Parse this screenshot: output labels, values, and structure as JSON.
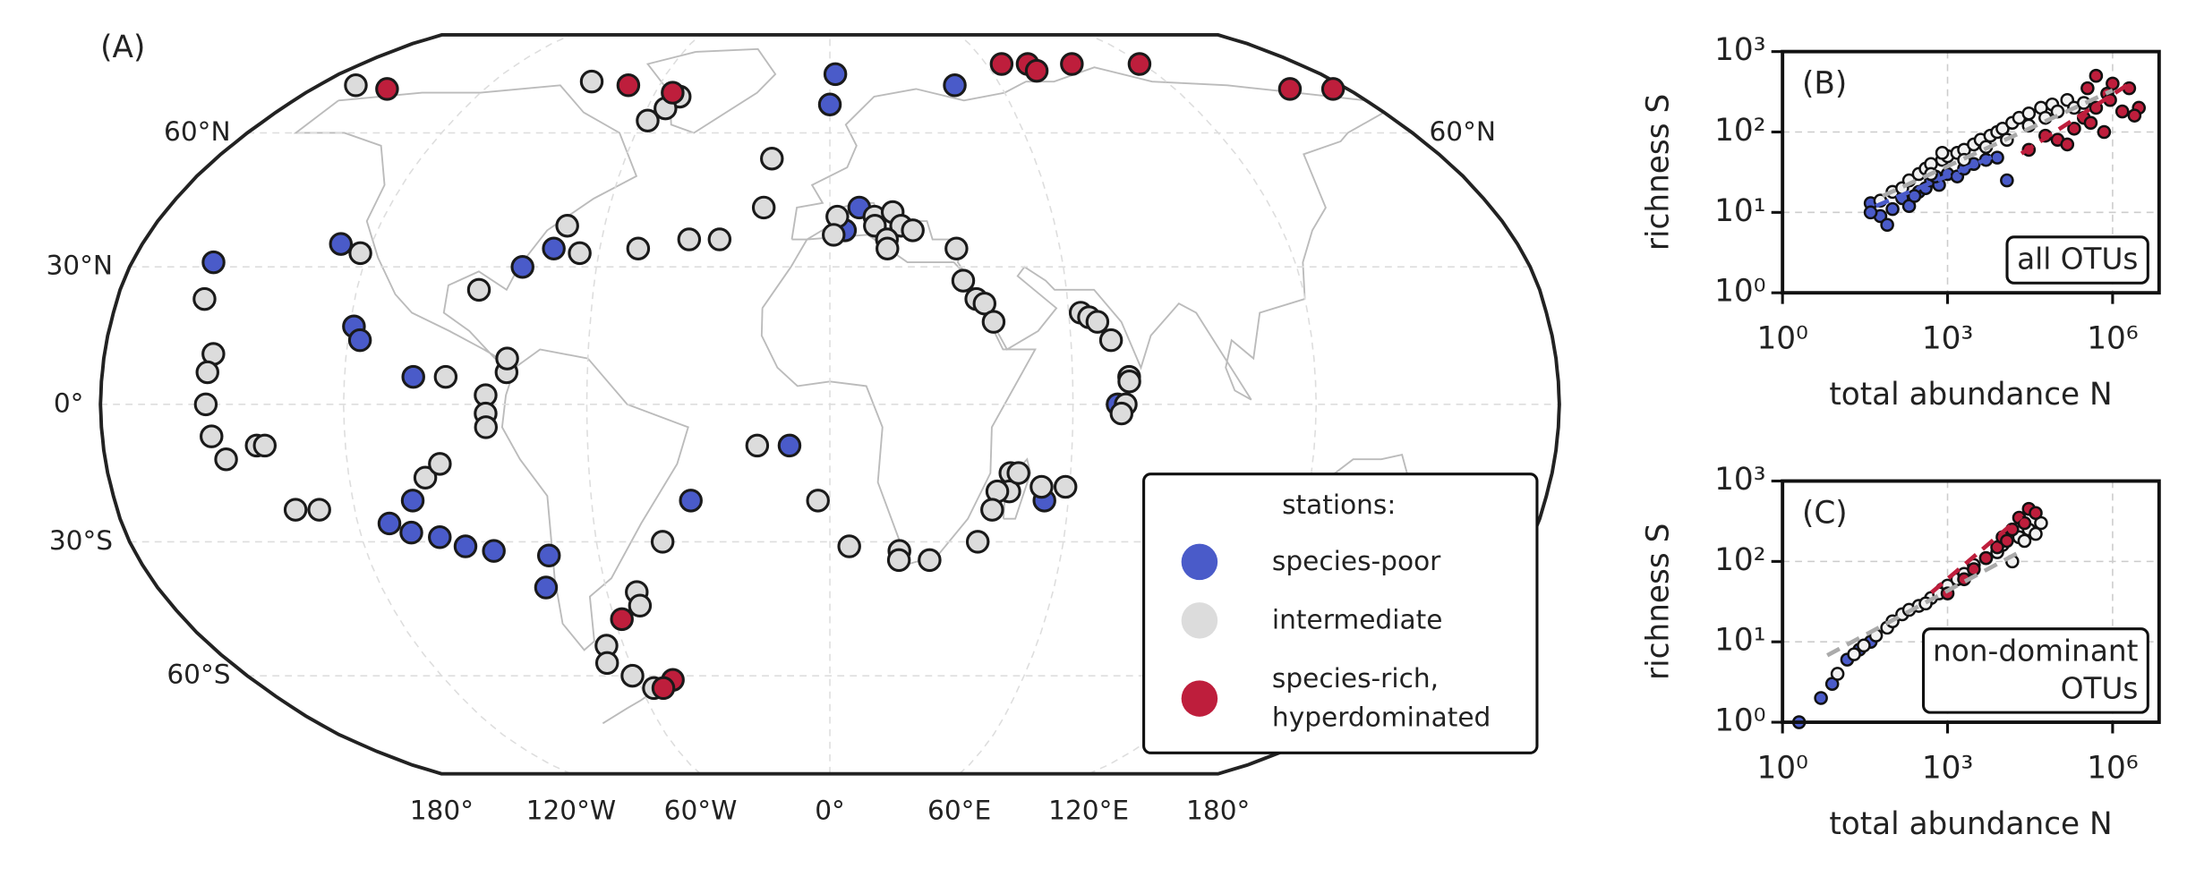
{
  "chart_data": [
    {
      "type": "map",
      "label": "(A)",
      "projection": "robinson",
      "grid": true,
      "xticks": [
        {
          "value": -180,
          "label": "180°"
        },
        {
          "value": -120,
          "label": "120°W"
        },
        {
          "value": -60,
          "label": "60°W"
        },
        {
          "value": 0,
          "label": "0°"
        },
        {
          "value": 60,
          "label": "60°E"
        },
        {
          "value": 120,
          "label": "120°E"
        },
        {
          "value": 180,
          "label": "180°"
        }
      ],
      "yticks": [
        {
          "value": 60,
          "label": "60°N"
        },
        {
          "value": 30,
          "label": "30°N"
        },
        {
          "value": 0,
          "label": "0°"
        },
        {
          "value": -30,
          "label": "30°S"
        },
        {
          "value": -60,
          "label": "60°S"
        }
      ],
      "yticks_right": [
        {
          "value": 60,
          "label": "60°N"
        }
      ],
      "legend": {
        "title": "stations:",
        "position": "lower right"
      },
      "series": [
        {
          "name": "species-poor",
          "color": "#4a5bc9",
          "lon": [
            -159,
            -128,
            -119,
            -117,
            -103,
            -79,
            -72,
            2,
            0,
            44,
            8,
            4,
            -35,
            -105,
            -112,
            -107,
            -100,
            -94,
            -87,
            -73,
            -76,
            -10,
            54,
            71
          ],
          "lat": [
            31,
            35,
            17,
            14,
            6,
            30,
            34,
            75,
            67,
            72,
            43,
            38,
            -21,
            -21,
            -26,
            -28,
            -29,
            -31,
            -32,
            -33,
            -40,
            -9,
            -21,
            0
          ]
        },
        {
          "name": "intermediate",
          "color": "#dcdcdc",
          "lon": [
            -167,
            -85,
            -51,
            -54,
            -58,
            -17,
            -18,
            -50,
            -37,
            -29,
            -70,
            -65,
            -89,
            -122,
            -158,
            -153,
            -154,
            -154,
            -153,
            -150,
            -142,
            -140,
            -135,
            -129,
            -101,
            -97,
            -95,
            -80,
            -80,
            -85,
            -85,
            -85,
            -18,
            -3,
            -43,
            -52,
            -52,
            -65,
            -67,
            -61,
            -56,
            5,
            18,
            18,
            26,
            2,
            1,
            12,
            17,
            19,
            22,
            12,
            15,
            15,
            33,
            34,
            37,
            39,
            41,
            63,
            65,
            67,
            70,
            74,
            74,
            73,
            72,
            45,
            45,
            42,
            47,
            53,
            59,
            41,
            38
          ],
          "lat": [
            72,
            73,
            69,
            66,
            63,
            54,
            43,
            34,
            36,
            36,
            39,
            33,
            25,
            33,
            23,
            11,
            7,
            0,
            -7,
            -12,
            -9,
            -9,
            -23,
            -23,
            -16,
            -13,
            6,
            7,
            10,
            2,
            -2,
            -5,
            -9,
            -21,
            -30,
            -41,
            -44,
            -53,
            -57,
            -60,
            -63,
            -31,
            -32,
            -34,
            -34,
            41,
            37,
            41,
            42,
            39,
            38,
            39,
            36,
            34,
            34,
            27,
            23,
            22,
            18,
            20,
            19,
            18,
            14,
            6,
            5,
            0,
            -2,
            -15,
            -19,
            -19,
            -15,
            -18,
            -18,
            -23,
            -30
          ]
        },
        {
          "name": "species-rich,\nhyperdominated",
          "color": "#be1e3c",
          "lon": [
            -154,
            -71,
            -54,
            66,
            76,
            77,
            93,
            119,
            160,
            175,
            -58,
            -49,
            -53
          ],
          "lat": [
            71,
            72,
            70,
            78,
            78,
            76,
            78,
            78,
            71,
            71,
            -47,
            -61,
            -63
          ]
        }
      ]
    },
    {
      "type": "scatter",
      "label": "(B)",
      "annotation": "all OTUs",
      "xlabel": "total abundance N",
      "ylabel": "richness S",
      "xscale": "log",
      "yscale": "log",
      "grid": true,
      "xlim": [
        1,
        7000000
      ],
      "ylim": [
        1,
        1000
      ],
      "xticks": [
        {
          "value": 1,
          "label": "10⁰"
        },
        {
          "value": 1000,
          "label": "10³"
        },
        {
          "value": 1000000,
          "label": "10⁶"
        }
      ],
      "yticks": [
        {
          "value": 1,
          "label": "10⁰"
        },
        {
          "value": 10,
          "label": "10¹"
        },
        {
          "value": 100,
          "label": "10²"
        },
        {
          "value": 1000,
          "label": "10³"
        }
      ],
      "series": [
        {
          "color": "#4a5bc9",
          "x": [
            40,
            60,
            80,
            100,
            150,
            200,
            300,
            400,
            500,
            700,
            1000,
            1500,
            2000,
            3000,
            5000,
            8000,
            12000,
            40,
            250,
            600
          ],
          "y": [
            13,
            9,
            7,
            11,
            15,
            12,
            18,
            20,
            25,
            22,
            30,
            28,
            35,
            40,
            45,
            48,
            25,
            10,
            16,
            28
          ]
        },
        {
          "color": "#f2f2f2",
          "x": [
            60,
            100,
            150,
            200,
            300,
            400,
            500,
            800,
            1000,
            1500,
            2000,
            3000,
            4000,
            6000,
            8000,
            10000,
            15000,
            20000,
            30000,
            50000,
            80000,
            100000,
            150000,
            200000,
            300000,
            500,
            2000,
            5000,
            800,
            30000,
            12000,
            60000
          ],
          "y": [
            14,
            18,
            20,
            25,
            30,
            35,
            40,
            45,
            50,
            55,
            60,
            70,
            80,
            90,
            100,
            110,
            130,
            150,
            170,
            200,
            220,
            180,
            250,
            200,
            230,
            30,
            45,
            65,
            55,
            120,
            80,
            150
          ]
        },
        {
          "color": "#be1e3c",
          "x": [
            30000,
            60000,
            100000,
            200000,
            300000,
            500000,
            800000,
            1000000,
            500000,
            2000000,
            3000000,
            400000,
            700000,
            1500000,
            150000,
            900000,
            2500000,
            350000
          ],
          "y": [
            60,
            90,
            80,
            110,
            150,
            200,
            300,
            400,
            500,
            350,
            200,
            130,
            100,
            180,
            70,
            250,
            160,
            350
          ]
        }
      ],
      "fits": [
        {
          "color": "#4a5bc9",
          "x": [
            50,
            7000
          ],
          "y": [
            12,
            50
          ]
        },
        {
          "color": "#aaaaaa",
          "x": [
            66,
            1000000
          ],
          "y": [
            16,
            330
          ]
        },
        {
          "color": "#be1e3c",
          "x": [
            22000,
            2400000
          ],
          "y": [
            54,
            430
          ]
        }
      ]
    },
    {
      "type": "scatter",
      "label": "(C)",
      "annotation": "non-dominant\nOTUs",
      "xlabel": "total abundance N",
      "ylabel": "richness S",
      "xscale": "log",
      "yscale": "log",
      "grid": true,
      "xlim": [
        1,
        7000000
      ],
      "ylim": [
        1,
        1000
      ],
      "xticks": [
        {
          "value": 1,
          "label": "10⁰"
        },
        {
          "value": 1000,
          "label": "10³"
        },
        {
          "value": 1000000,
          "label": "10⁶"
        }
      ],
      "yticks": [
        {
          "value": 1,
          "label": "10⁰"
        },
        {
          "value": 10,
          "label": "10¹"
        },
        {
          "value": 100,
          "label": "10²"
        },
        {
          "value": 1000,
          "label": "10³"
        }
      ],
      "series": [
        {
          "color": "#4a5bc9",
          "x": [
            2,
            5,
            8,
            15,
            25,
            40
          ],
          "y": [
            1,
            2,
            3,
            6,
            8,
            10
          ]
        },
        {
          "color": "#f2f2f2",
          "x": [
            10,
            20,
            30,
            50,
            80,
            100,
            150,
            200,
            300,
            500,
            800,
            1000,
            1500,
            2000,
            3000,
            5000,
            8000,
            10000,
            20000,
            30000,
            25000,
            15000,
            40000,
            50000,
            700,
            400
          ],
          "y": [
            4,
            7,
            9,
            12,
            15,
            18,
            22,
            25,
            28,
            35,
            45,
            50,
            60,
            70,
            90,
            110,
            130,
            160,
            200,
            250,
            180,
            100,
            220,
            300,
            40,
            30
          ]
        },
        {
          "color": "#be1e3c",
          "x": [
            1000,
            2000,
            3000,
            5000,
            8000,
            10000,
            15000,
            20000,
            30000,
            25000,
            12000,
            40000
          ],
          "y": [
            40,
            60,
            80,
            110,
            150,
            200,
            250,
            350,
            450,
            300,
            180,
            400
          ]
        }
      ],
      "fits": [
        {
          "color": "#aaaaaa",
          "x": [
            6.5,
            22000
          ],
          "y": [
            6.8,
            135
          ]
        },
        {
          "color": "#be1e3c",
          "x": [
            510,
            22000
          ],
          "y": [
            41,
            365
          ]
        }
      ]
    }
  ]
}
